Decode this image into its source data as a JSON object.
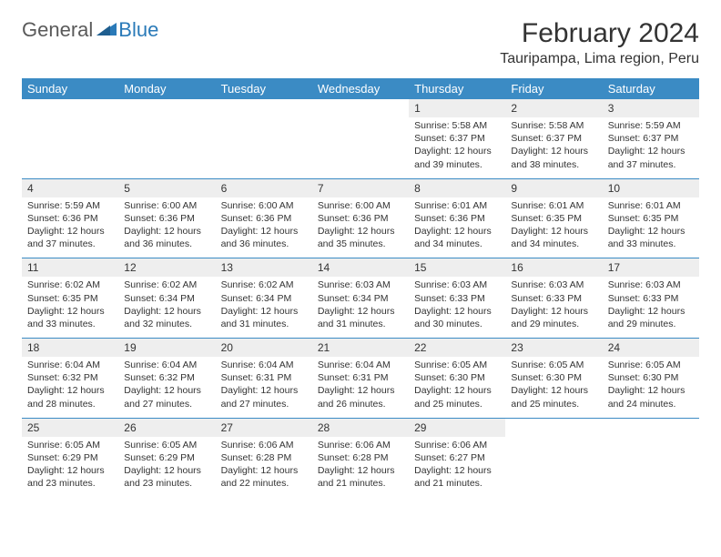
{
  "logo": {
    "text_gray": "General",
    "text_blue": "Blue"
  },
  "title": "February 2024",
  "location": "Tauripampa, Lima region, Peru",
  "colors": {
    "header_bg": "#3b8bc4",
    "header_text": "#ffffff",
    "daynum_bg": "#eeeeee",
    "rule": "#3b8bc4",
    "logo_gray": "#5a5a5a",
    "logo_blue": "#2a7ab8"
  },
  "days_of_week": [
    "Sunday",
    "Monday",
    "Tuesday",
    "Wednesday",
    "Thursday",
    "Friday",
    "Saturday"
  ],
  "weeks": [
    [
      null,
      null,
      null,
      null,
      {
        "n": "1",
        "sr": "5:58 AM",
        "ss": "6:37 PM",
        "dl": "12 hours and 39 minutes."
      },
      {
        "n": "2",
        "sr": "5:58 AM",
        "ss": "6:37 PM",
        "dl": "12 hours and 38 minutes."
      },
      {
        "n": "3",
        "sr": "5:59 AM",
        "ss": "6:37 PM",
        "dl": "12 hours and 37 minutes."
      }
    ],
    [
      {
        "n": "4",
        "sr": "5:59 AM",
        "ss": "6:36 PM",
        "dl": "12 hours and 37 minutes."
      },
      {
        "n": "5",
        "sr": "6:00 AM",
        "ss": "6:36 PM",
        "dl": "12 hours and 36 minutes."
      },
      {
        "n": "6",
        "sr": "6:00 AM",
        "ss": "6:36 PM",
        "dl": "12 hours and 36 minutes."
      },
      {
        "n": "7",
        "sr": "6:00 AM",
        "ss": "6:36 PM",
        "dl": "12 hours and 35 minutes."
      },
      {
        "n": "8",
        "sr": "6:01 AM",
        "ss": "6:36 PM",
        "dl": "12 hours and 34 minutes."
      },
      {
        "n": "9",
        "sr": "6:01 AM",
        "ss": "6:35 PM",
        "dl": "12 hours and 34 minutes."
      },
      {
        "n": "10",
        "sr": "6:01 AM",
        "ss": "6:35 PM",
        "dl": "12 hours and 33 minutes."
      }
    ],
    [
      {
        "n": "11",
        "sr": "6:02 AM",
        "ss": "6:35 PM",
        "dl": "12 hours and 33 minutes."
      },
      {
        "n": "12",
        "sr": "6:02 AM",
        "ss": "6:34 PM",
        "dl": "12 hours and 32 minutes."
      },
      {
        "n": "13",
        "sr": "6:02 AM",
        "ss": "6:34 PM",
        "dl": "12 hours and 31 minutes."
      },
      {
        "n": "14",
        "sr": "6:03 AM",
        "ss": "6:34 PM",
        "dl": "12 hours and 31 minutes."
      },
      {
        "n": "15",
        "sr": "6:03 AM",
        "ss": "6:33 PM",
        "dl": "12 hours and 30 minutes."
      },
      {
        "n": "16",
        "sr": "6:03 AM",
        "ss": "6:33 PM",
        "dl": "12 hours and 29 minutes."
      },
      {
        "n": "17",
        "sr": "6:03 AM",
        "ss": "6:33 PM",
        "dl": "12 hours and 29 minutes."
      }
    ],
    [
      {
        "n": "18",
        "sr": "6:04 AM",
        "ss": "6:32 PM",
        "dl": "12 hours and 28 minutes."
      },
      {
        "n": "19",
        "sr": "6:04 AM",
        "ss": "6:32 PM",
        "dl": "12 hours and 27 minutes."
      },
      {
        "n": "20",
        "sr": "6:04 AM",
        "ss": "6:31 PM",
        "dl": "12 hours and 27 minutes."
      },
      {
        "n": "21",
        "sr": "6:04 AM",
        "ss": "6:31 PM",
        "dl": "12 hours and 26 minutes."
      },
      {
        "n": "22",
        "sr": "6:05 AM",
        "ss": "6:30 PM",
        "dl": "12 hours and 25 minutes."
      },
      {
        "n": "23",
        "sr": "6:05 AM",
        "ss": "6:30 PM",
        "dl": "12 hours and 25 minutes."
      },
      {
        "n": "24",
        "sr": "6:05 AM",
        "ss": "6:30 PM",
        "dl": "12 hours and 24 minutes."
      }
    ],
    [
      {
        "n": "25",
        "sr": "6:05 AM",
        "ss": "6:29 PM",
        "dl": "12 hours and 23 minutes."
      },
      {
        "n": "26",
        "sr": "6:05 AM",
        "ss": "6:29 PM",
        "dl": "12 hours and 23 minutes."
      },
      {
        "n": "27",
        "sr": "6:06 AM",
        "ss": "6:28 PM",
        "dl": "12 hours and 22 minutes."
      },
      {
        "n": "28",
        "sr": "6:06 AM",
        "ss": "6:28 PM",
        "dl": "12 hours and 21 minutes."
      },
      {
        "n": "29",
        "sr": "6:06 AM",
        "ss": "6:27 PM",
        "dl": "12 hours and 21 minutes."
      },
      null,
      null
    ]
  ],
  "labels": {
    "sunrise": "Sunrise:",
    "sunset": "Sunset:",
    "daylight": "Daylight:"
  }
}
